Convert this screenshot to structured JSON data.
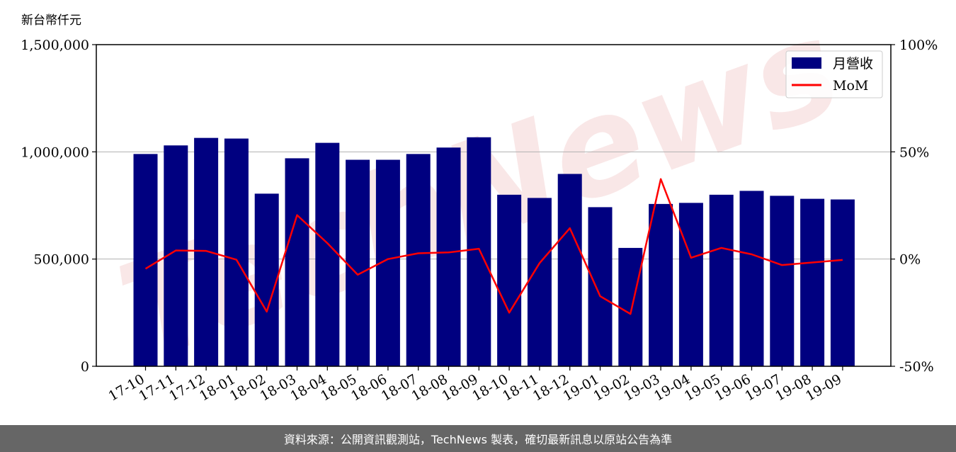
{
  "unit_label": "新台幣仟元",
  "footer_text": "資料來源：公開資訊觀測站，TechNews 製表，確切最新訊息以原站公告為準",
  "watermark": "TechNews",
  "colors": {
    "bar": "#000080",
    "line": "#ff0000",
    "grid": "#b0b0b0",
    "footer_bg": "#666666"
  },
  "chart_data": {
    "type": "bar",
    "categories": [
      "17-10",
      "17-11",
      "17-12",
      "18-01",
      "18-02",
      "18-03",
      "18-04",
      "18-05",
      "18-06",
      "18-07",
      "18-08",
      "18-09",
      "18-10",
      "18-11",
      "18-12",
      "19-01",
      "19-02",
      "19-03",
      "19-04",
      "19-05",
      "19-06",
      "19-07",
      "19-08",
      "19-09"
    ],
    "series": [
      {
        "name": "月營收",
        "type": "bar",
        "axis": "left",
        "values": [
          990000,
          1030000,
          1065000,
          1062000,
          805000,
          970000,
          1042000,
          963000,
          963000,
          990000,
          1020000,
          1068000,
          800000,
          785000,
          897000,
          742000,
          552000,
          757000,
          762000,
          800000,
          818000,
          795000,
          781000,
          778000
        ]
      },
      {
        "name": "MoM",
        "type": "line",
        "axis": "right",
        "values": [
          -4.5,
          4.0,
          3.8,
          -0.3,
          -24.5,
          20.5,
          7.4,
          -7.3,
          0.0,
          2.7,
          3.1,
          4.8,
          -25.0,
          -1.9,
          14.4,
          -17.3,
          -25.6,
          37.3,
          0.6,
          5.2,
          2.2,
          -2.8,
          -1.6,
          -0.4
        ]
      }
    ],
    "y_left": {
      "ylim": [
        0,
        1500000
      ],
      "ticks": [
        "0",
        "500,000",
        "1,000,000",
        "1,500,000"
      ],
      "tick_values": [
        0,
        500000,
        1000000,
        1500000
      ]
    },
    "y_right": {
      "ylim": [
        -50,
        100
      ],
      "ticks": [
        "-50%",
        "0%",
        "50%",
        "100%"
      ],
      "tick_values": [
        -50,
        0,
        50,
        100
      ]
    },
    "grid": "horizontal",
    "legend": "top-right"
  }
}
